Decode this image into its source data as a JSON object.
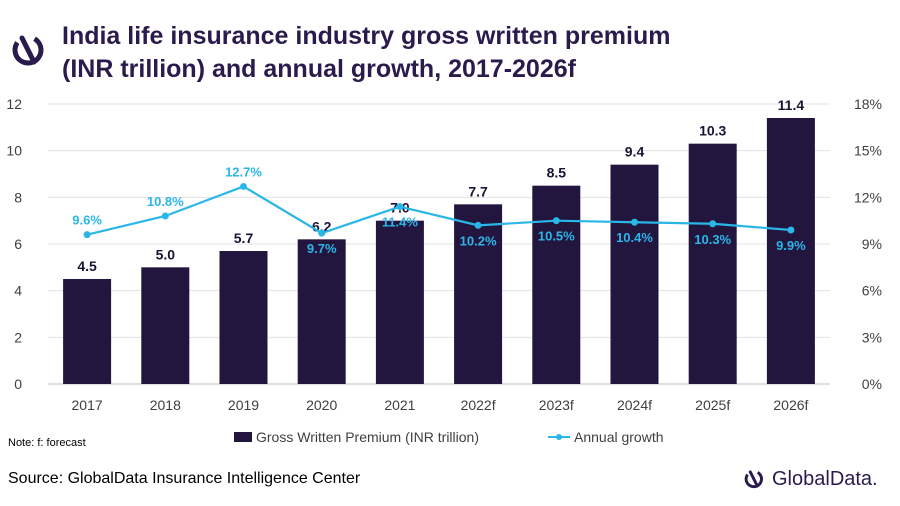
{
  "title_line1": "India life insurance industry gross written premium",
  "title_line2": "(INR trillion) and annual growth, 2017-2026f",
  "note": "Note: f: forecast",
  "source": "Source: GlobalData Insurance Intelligence Center",
  "brand": "GlobalData.",
  "colors": {
    "bar": "#22163f",
    "line": "#2bb6e8",
    "title": "#2a1b4d"
  },
  "icons": {
    "logo": "globaldata-logo-icon"
  },
  "chart_data": {
    "type": "bar",
    "categories": [
      "2017",
      "2018",
      "2019",
      "2020",
      "2021",
      "2022f",
      "2023f",
      "2024f",
      "2025f",
      "2026f"
    ],
    "series": [
      {
        "name": "Gross Written Premium (INR trillion)",
        "type": "bar",
        "axis": "left",
        "values": [
          4.5,
          5.0,
          5.7,
          6.2,
          7.0,
          7.7,
          8.5,
          9.4,
          10.3,
          11.4
        ],
        "labels": [
          "4.5",
          "5.0",
          "5.7",
          "6.2",
          "7.0",
          "7.7",
          "8.5",
          "9.4",
          "10.3",
          "11.4"
        ]
      },
      {
        "name": "Annual growth",
        "type": "line",
        "axis": "right",
        "values": [
          9.6,
          10.8,
          12.7,
          9.7,
          11.4,
          10.2,
          10.5,
          10.4,
          10.3,
          9.9
        ],
        "labels": [
          "9.6%",
          "10.8%",
          "12.7%",
          "9.7%",
          "11.4%",
          "10.2%",
          "10.5%",
          "10.4%",
          "10.3%",
          "9.9%"
        ]
      }
    ],
    "y_left": {
      "min": 0,
      "max": 12,
      "ticks": [
        "0",
        "2",
        "4",
        "6",
        "8",
        "10",
        "12"
      ]
    },
    "y_right": {
      "min": 0,
      "max": 18,
      "ticks": [
        "0%",
        "3%",
        "6%",
        "9%",
        "12%",
        "15%",
        "18%"
      ]
    },
    "legend_position": "bottom",
    "grid": true
  }
}
